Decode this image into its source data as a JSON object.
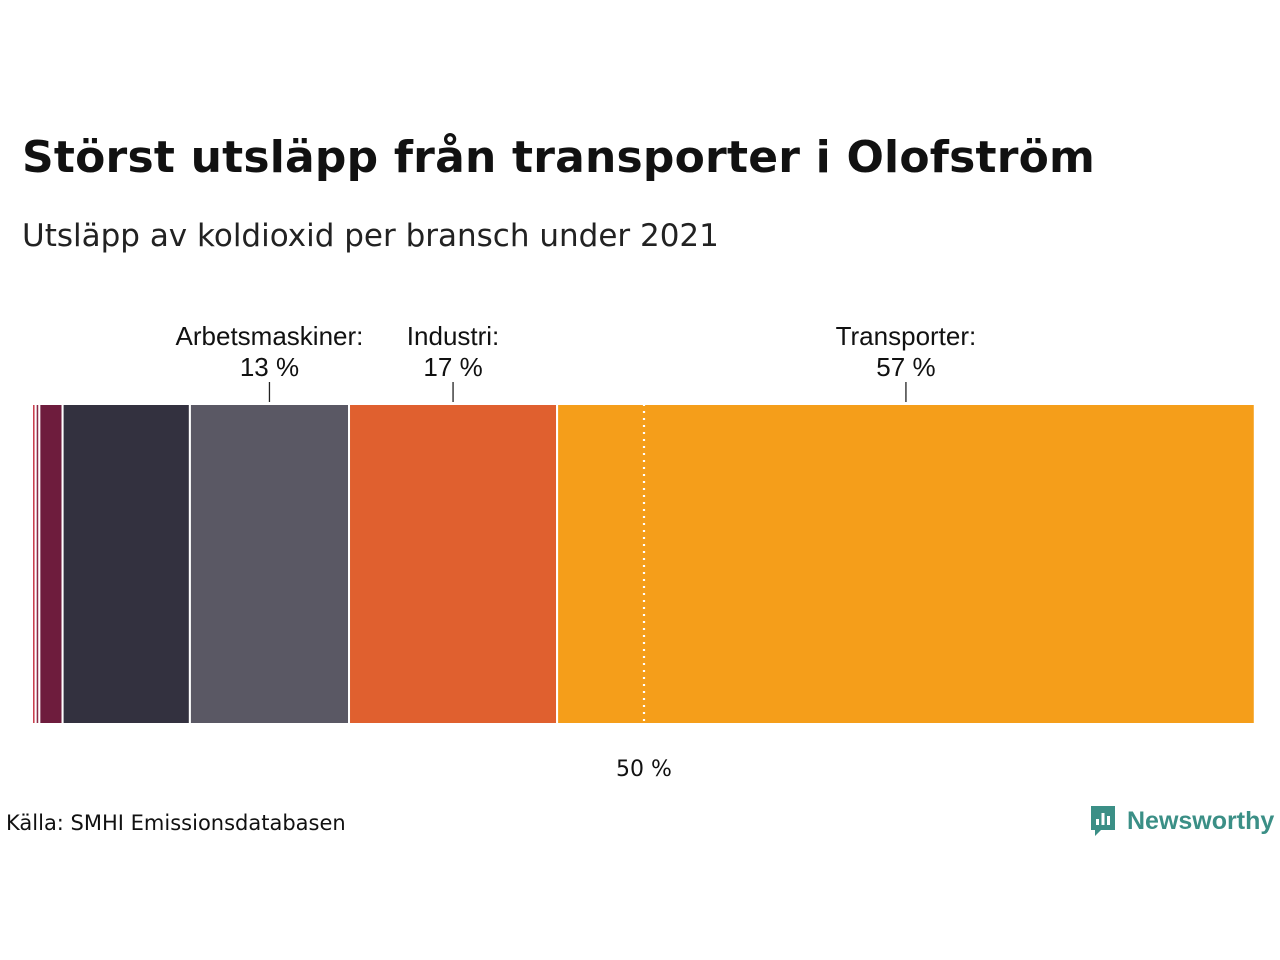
{
  "title": "Störst utsläpp från transporter i Olofström",
  "subtitle": "Utsläpp av koldioxid per bransch under 2021",
  "source": "Källa: SMHI Emissionsdatabasen",
  "brand": {
    "name": "Newsworthy",
    "color": "#3b8f86",
    "icon": "newsworthy-logo-icon"
  },
  "chart_data": {
    "type": "bar",
    "orientation": "horizontal-stacked-100",
    "unit": "%",
    "segments": [
      {
        "value": 0.3,
        "color": "#c9404f"
      },
      {
        "value": 0.3,
        "color": "#8c2945"
      },
      {
        "value": 1.9,
        "color": "#6e1c3d"
      },
      {
        "value": 10.4,
        "color": "#33313f"
      },
      {
        "value": 13,
        "color": "#5a5864",
        "label": "Arbetsmaskiner:",
        "value_label": "13 %"
      },
      {
        "value": 17,
        "color": "#e0602f",
        "label": "Industri:",
        "value_label": "17 %"
      },
      {
        "value": 57,
        "color": "#f59e1a",
        "label": "Transporter:",
        "value_label": "57 %"
      }
    ],
    "reference_line": {
      "value": 50,
      "label": "50 %",
      "style": "dotted"
    },
    "xlim": [
      0,
      100
    ]
  }
}
